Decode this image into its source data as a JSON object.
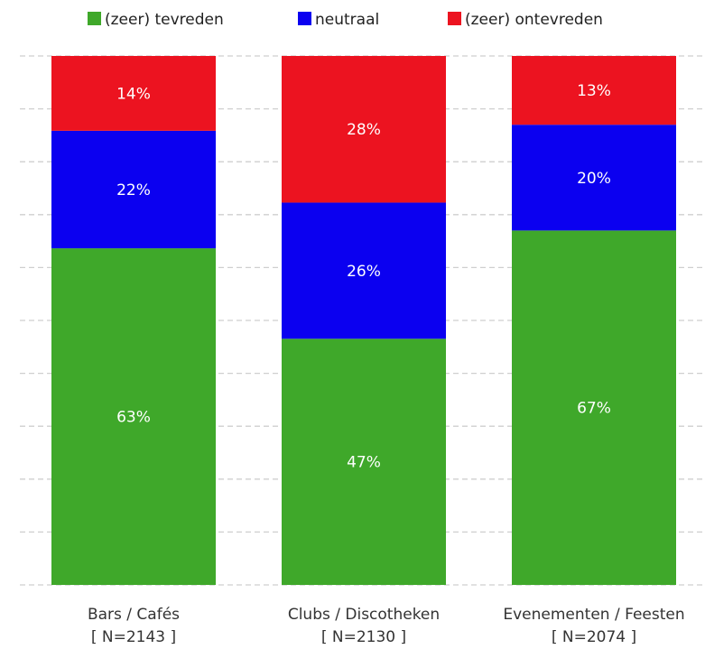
{
  "chart_data": {
    "type": "bar",
    "stacked": true,
    "title": "",
    "xlabel": "",
    "ylabel": "",
    "ylim": [
      0,
      100
    ],
    "grid": true,
    "legend_position": "top",
    "categories": [
      "Bars / Cafés",
      "Clubs / Discotheken",
      "Evenementen / Feesten"
    ],
    "category_sublabels": [
      "[ N=2143 ]",
      "[ N=2130 ]",
      "[ N=2074 ]"
    ],
    "series": [
      {
        "name": "(zeer) tevreden",
        "color": "#3fa82a",
        "values": [
          63,
          47,
          67
        ],
        "labels": [
          "63%",
          "47%",
          "67%"
        ]
      },
      {
        "name": "neutraal",
        "color": "#0b00f0",
        "values": [
          22,
          26,
          20
        ],
        "labels": [
          "22%",
          "26%",
          "20%"
        ]
      },
      {
        "name": "(zeer) ontevreden",
        "color": "#ec1320",
        "values": [
          14,
          28,
          13
        ],
        "labels": [
          "14%",
          "28%",
          "13%"
        ]
      }
    ]
  }
}
